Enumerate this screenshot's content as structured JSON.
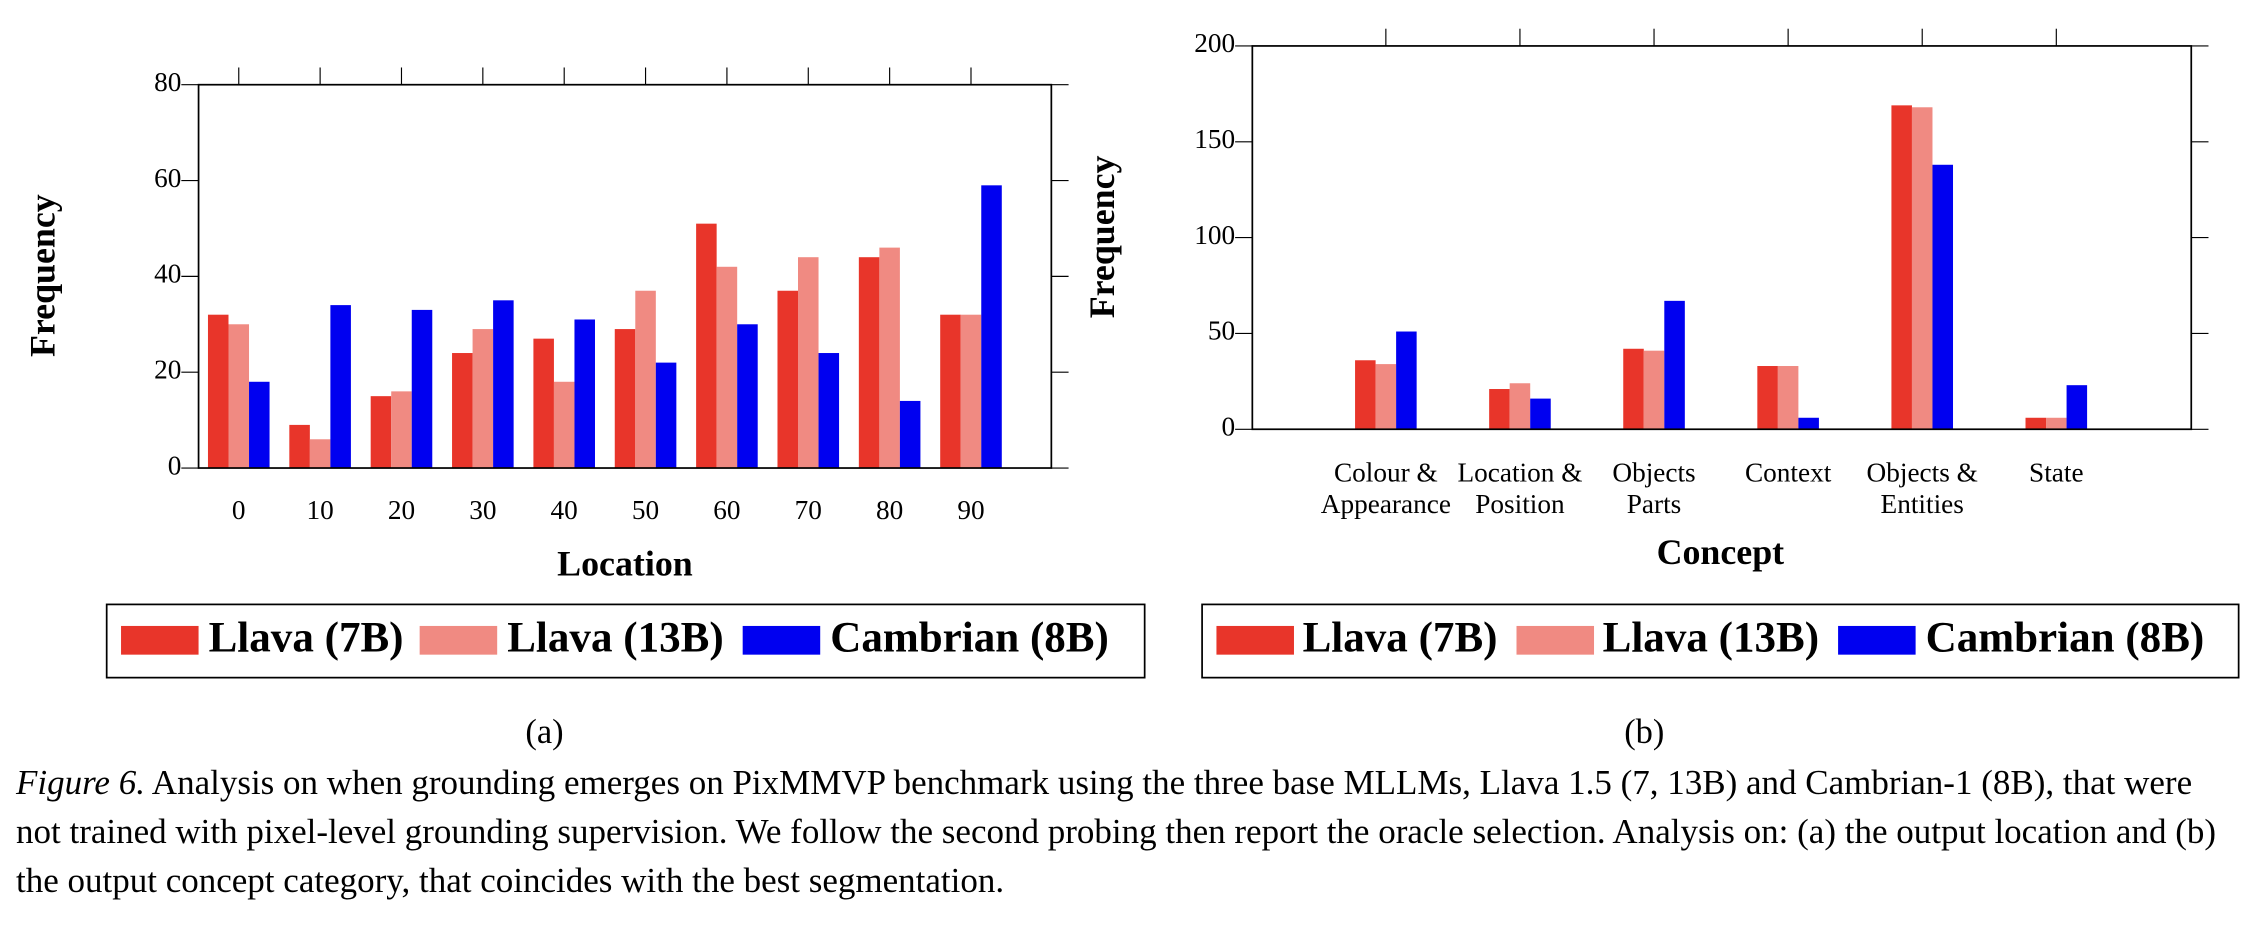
{
  "chart_data": [
    {
      "type": "bar",
      "subcaption": "(a)",
      "xlabel": "Location",
      "ylabel": "Frequency",
      "categories": [
        [
          "0"
        ],
        [
          "10"
        ],
        [
          "20"
        ],
        [
          "30"
        ],
        [
          "40"
        ],
        [
          "50"
        ],
        [
          "60"
        ],
        [
          "70"
        ],
        [
          "80"
        ],
        [
          "90"
        ]
      ],
      "series": [
        {
          "name": "Llava (7B)",
          "color": "#e8352a",
          "values": [
            32,
            9,
            15,
            24,
            27,
            29,
            51,
            37,
            44,
            32
          ]
        },
        {
          "name": "Llava (13B)",
          "color": "#f08a82",
          "values": [
            30,
            6,
            16,
            29,
            18,
            37,
            42,
            44,
            46,
            32
          ]
        },
        {
          "name": "Cambrian (8B)",
          "color": "#0000f0",
          "values": [
            18,
            34,
            33,
            35,
            31,
            22,
            30,
            24,
            14,
            59
          ]
        }
      ],
      "ylim": [
        0,
        80
      ],
      "yticks": [
        0,
        20,
        40,
        60,
        80
      ]
    },
    {
      "type": "bar",
      "subcaption": "(b)",
      "xlabel": "Concept",
      "ylabel": "Frequency",
      "categories": [
        [
          "Colour &",
          "Appearance"
        ],
        [
          "Location &",
          "Position"
        ],
        [
          "Objects",
          "Parts"
        ],
        [
          "Context"
        ],
        [
          "Objects &",
          "Entities"
        ],
        [
          "State"
        ]
      ],
      "series": [
        {
          "name": "Llava (7B)",
          "color": "#e8352a",
          "values": [
            36,
            21,
            42,
            33,
            169,
            6
          ]
        },
        {
          "name": "Llava (13B)",
          "color": "#f08a82",
          "values": [
            34,
            24,
            41,
            33,
            168,
            6
          ]
        },
        {
          "name": "Cambrian (8B)",
          "color": "#0000f0",
          "values": [
            51,
            16,
            67,
            6,
            138,
            23
          ]
        }
      ],
      "ylim": [
        0,
        200
      ],
      "yticks": [
        0,
        50,
        100,
        150,
        200
      ]
    }
  ],
  "caption": {
    "label": "Figure 6.",
    "text": "Analysis on when grounding emerges on PixMMVP benchmark using the three base MLLMs, Llava 1.5 (7, 13B) and Cambrian-1 (8B), that were not trained with pixel-level grounding supervision. We follow the second probing then report the oracle selection. Analysis on: (a) the output location and (b) the output concept category, that coincides with the best segmentation."
  }
}
